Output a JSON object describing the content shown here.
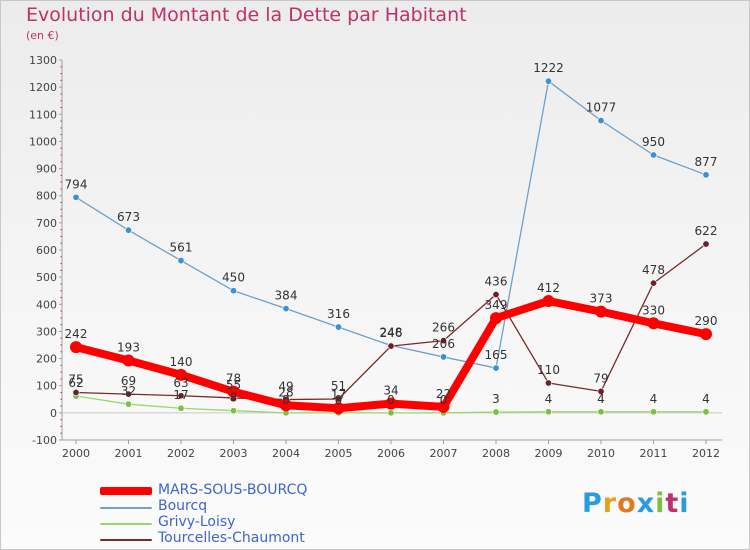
{
  "title": "Evolution du Montant de la Dette par Habitant",
  "subtitle": "(en €)",
  "logo": {
    "letters": [
      "P",
      "r",
      "o",
      "x",
      "i",
      "t",
      "i"
    ],
    "colors": [
      "#2a9be0",
      "#e8a020",
      "#e07a1e",
      "#2a9be0",
      "#7ac043",
      "#c0306a",
      "#2a9be0"
    ]
  },
  "chart_data": {
    "type": "line",
    "x": [
      "2000",
      "2001",
      "2002",
      "2003",
      "2004",
      "2005",
      "2006",
      "2007",
      "2008",
      "2009",
      "2010",
      "2011",
      "2012"
    ],
    "ylim": [
      -100,
      1300
    ],
    "yticks": [
      "-100",
      "0",
      "100",
      "200",
      "300",
      "400",
      "500",
      "600",
      "700",
      "800",
      "900",
      "1000",
      "1100",
      "1200",
      "1300"
    ],
    "grid": false,
    "legend_position": "bottom-left",
    "series": [
      {
        "name": "MARS-SOUS-BOURCQ",
        "color": "#ff0000",
        "point_color": "#ff0000",
        "values": [
          242,
          193,
          140,
          78,
          28,
          17,
          34,
          22,
          349,
          412,
          373,
          330,
          290
        ]
      },
      {
        "name": "Bourcq",
        "color": "#6fa0c8",
        "point_color": "#3d8fd6",
        "values": [
          794,
          673,
          561,
          450,
          384,
          316,
          248,
          206,
          165,
          1222,
          1077,
          950,
          877
        ]
      },
      {
        "name": "Grivy-Loisy",
        "color": "#9ad66c",
        "point_color": "#7ac043",
        "values": [
          62,
          32,
          17,
          8,
          0,
          0,
          0,
          0,
          3,
          4,
          4,
          4,
          4
        ]
      },
      {
        "name": "Tourcelles-Chaumont",
        "color": "#7a2a2a",
        "point_color": "#6b1f2b",
        "values": [
          75,
          69,
          63,
          55,
          49,
          51,
          246,
          266,
          436,
          110,
          79,
          478,
          622
        ]
      }
    ]
  }
}
